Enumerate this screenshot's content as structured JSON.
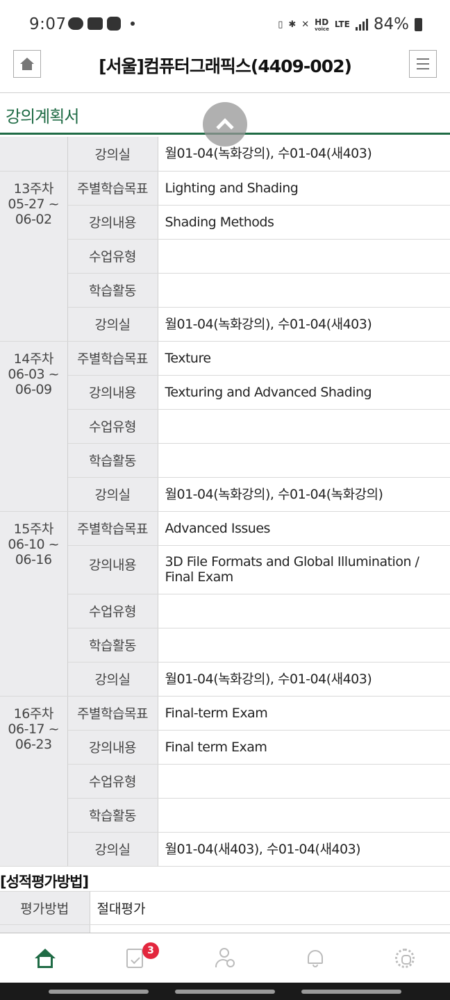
{
  "status_bar": {
    "time": "9:07",
    "network_hd": "HD",
    "network_hd_sub": "voice",
    "network_lte": "LTE",
    "battery": "84%",
    "icons": [
      "chat-bubble-icon",
      "card-icon",
      "clover-icon",
      "dot-icon",
      "vibration-icon",
      "bluetooth-icon",
      "mute-icon",
      "signal-icon",
      "battery-icon"
    ]
  },
  "header": {
    "title": "[서울]컴퓨터그래픽스(4409-002)",
    "home_icon": "home-icon",
    "menu_icon": "hamburger-menu-icon"
  },
  "section": {
    "title": "강의계획서"
  },
  "weeks": [
    {
      "week": "",
      "rows": [
        {
          "label": "강의실",
          "value": "월01-04(녹화강의), 수01-04(새403)"
        }
      ]
    },
    {
      "week": "13주차",
      "start": "05-27 ~",
      "end": "06-02",
      "rows": [
        {
          "label": "주별학습목표",
          "value": "Lighting and Shading"
        },
        {
          "label": "강의내용",
          "value": "Shading Methods"
        },
        {
          "label": "수업유형",
          "value": ""
        },
        {
          "label": "학습활동",
          "value": ""
        },
        {
          "label": "강의실",
          "value": "월01-04(녹화강의), 수01-04(새403)"
        }
      ]
    },
    {
      "week": "14주차",
      "start": "06-03 ~",
      "end": "06-09",
      "rows": [
        {
          "label": "주별학습목표",
          "value": "Texture"
        },
        {
          "label": "강의내용",
          "value": "Texturing and Advanced Shading"
        },
        {
          "label": "수업유형",
          "value": ""
        },
        {
          "label": "학습활동",
          "value": ""
        },
        {
          "label": "강의실",
          "value": "월01-04(녹화강의), 수01-04(녹화강의)"
        }
      ]
    },
    {
      "week": "15주차",
      "start": "06-10 ~",
      "end": "06-16",
      "rows": [
        {
          "label": "주별학습목표",
          "value": "Advanced Issues"
        },
        {
          "label": "강의내용",
          "value": "3D File Formats and Global Illumination / Final Exam"
        },
        {
          "label": "수업유형",
          "value": ""
        },
        {
          "label": "학습활동",
          "value": ""
        },
        {
          "label": "강의실",
          "value": "월01-04(녹화강의), 수01-04(새403)"
        }
      ]
    },
    {
      "week": "16주차",
      "start": "06-17 ~",
      "end": "06-23",
      "rows": [
        {
          "label": "주별학습목표",
          "value": "Final-term Exam"
        },
        {
          "label": "강의내용",
          "value": "Final term Exam"
        },
        {
          "label": "수업유형",
          "value": ""
        },
        {
          "label": "학습활동",
          "value": ""
        },
        {
          "label": "강의실",
          "value": "월01-04(새403), 수01-04(새403)"
        }
      ]
    }
  ],
  "grading": {
    "title": "[성적평가방법]",
    "rows": [
      {
        "label": "평가방법",
        "value": "절대평가"
      },
      {
        "label": "",
        "value": ""
      }
    ]
  },
  "bottom_nav": {
    "items": [
      "home-icon",
      "clipboard-check-icon",
      "user-check-icon",
      "bell-icon",
      "gear-icon"
    ],
    "badge": "3"
  },
  "colors": {
    "accent": "#1f6b45",
    "label_bg": "#ececee",
    "badge": "#e3263d"
  }
}
